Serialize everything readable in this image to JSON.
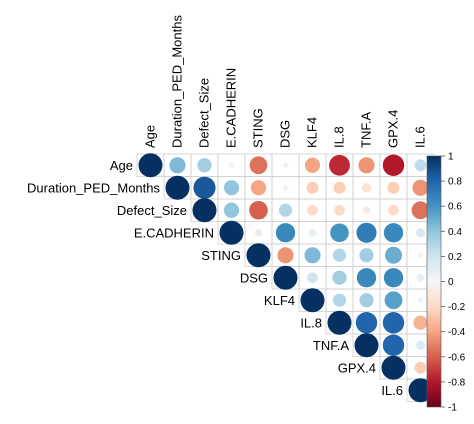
{
  "chart_data": {
    "type": "heatmap",
    "style": "correlation matrix, upper triangle, circle glyphs (size and color = correlation)",
    "variables": [
      "Age",
      "Duration_PED_Months",
      "Defect_Size",
      "E.CADHERIN",
      "STING",
      "DSG",
      "KLF4",
      "IL.8",
      "TNF.A",
      "GPX.4",
      "IL.6"
    ],
    "matrix": [
      [
        1.0,
        0.45,
        0.35,
        0.05,
        -0.55,
        -0.05,
        -0.4,
        -0.75,
        -0.45,
        -0.8,
        0.25
      ],
      [
        null,
        1.0,
        0.85,
        0.4,
        -0.4,
        -0.05,
        -0.25,
        -0.25,
        -0.15,
        -0.25,
        -0.45
      ],
      [
        null,
        null,
        1.0,
        0.4,
        -0.6,
        0.3,
        -0.2,
        -0.2,
        -0.1,
        -0.2,
        -0.55
      ],
      [
        null,
        null,
        null,
        1.0,
        0.1,
        0.65,
        0.1,
        0.6,
        0.7,
        0.65,
        0.15
      ],
      [
        null,
        null,
        null,
        null,
        1.0,
        -0.45,
        0.45,
        0.3,
        0.35,
        0.5,
        -0.05
      ],
      [
        null,
        null,
        null,
        null,
        null,
        1.0,
        0.2,
        0.35,
        0.65,
        0.65,
        0.1
      ],
      [
        null,
        null,
        null,
        null,
        null,
        null,
        1.0,
        0.3,
        0.35,
        0.55,
        0.05
      ],
      [
        null,
        null,
        null,
        null,
        null,
        null,
        null,
        1.0,
        0.8,
        0.8,
        -0.35
      ],
      [
        null,
        null,
        null,
        null,
        null,
        null,
        null,
        null,
        1.0,
        0.8,
        0.15
      ],
      [
        null,
        null,
        null,
        null,
        null,
        null,
        null,
        null,
        null,
        1.0,
        -0.25
      ],
      [
        null,
        null,
        null,
        null,
        null,
        null,
        null,
        null,
        null,
        null,
        1.0
      ]
    ],
    "color_scale": {
      "range": [
        -1,
        1
      ],
      "ticks": [
        "1",
        "0.8",
        "0.6",
        "0.4",
        "0.2",
        "0",
        "-0.2",
        "-0.4",
        "-0.6",
        "-0.8",
        "-1"
      ],
      "negative_color": "#67001f",
      "neutral_color": "#f7f7f7",
      "positive_color": "#053061"
    }
  }
}
